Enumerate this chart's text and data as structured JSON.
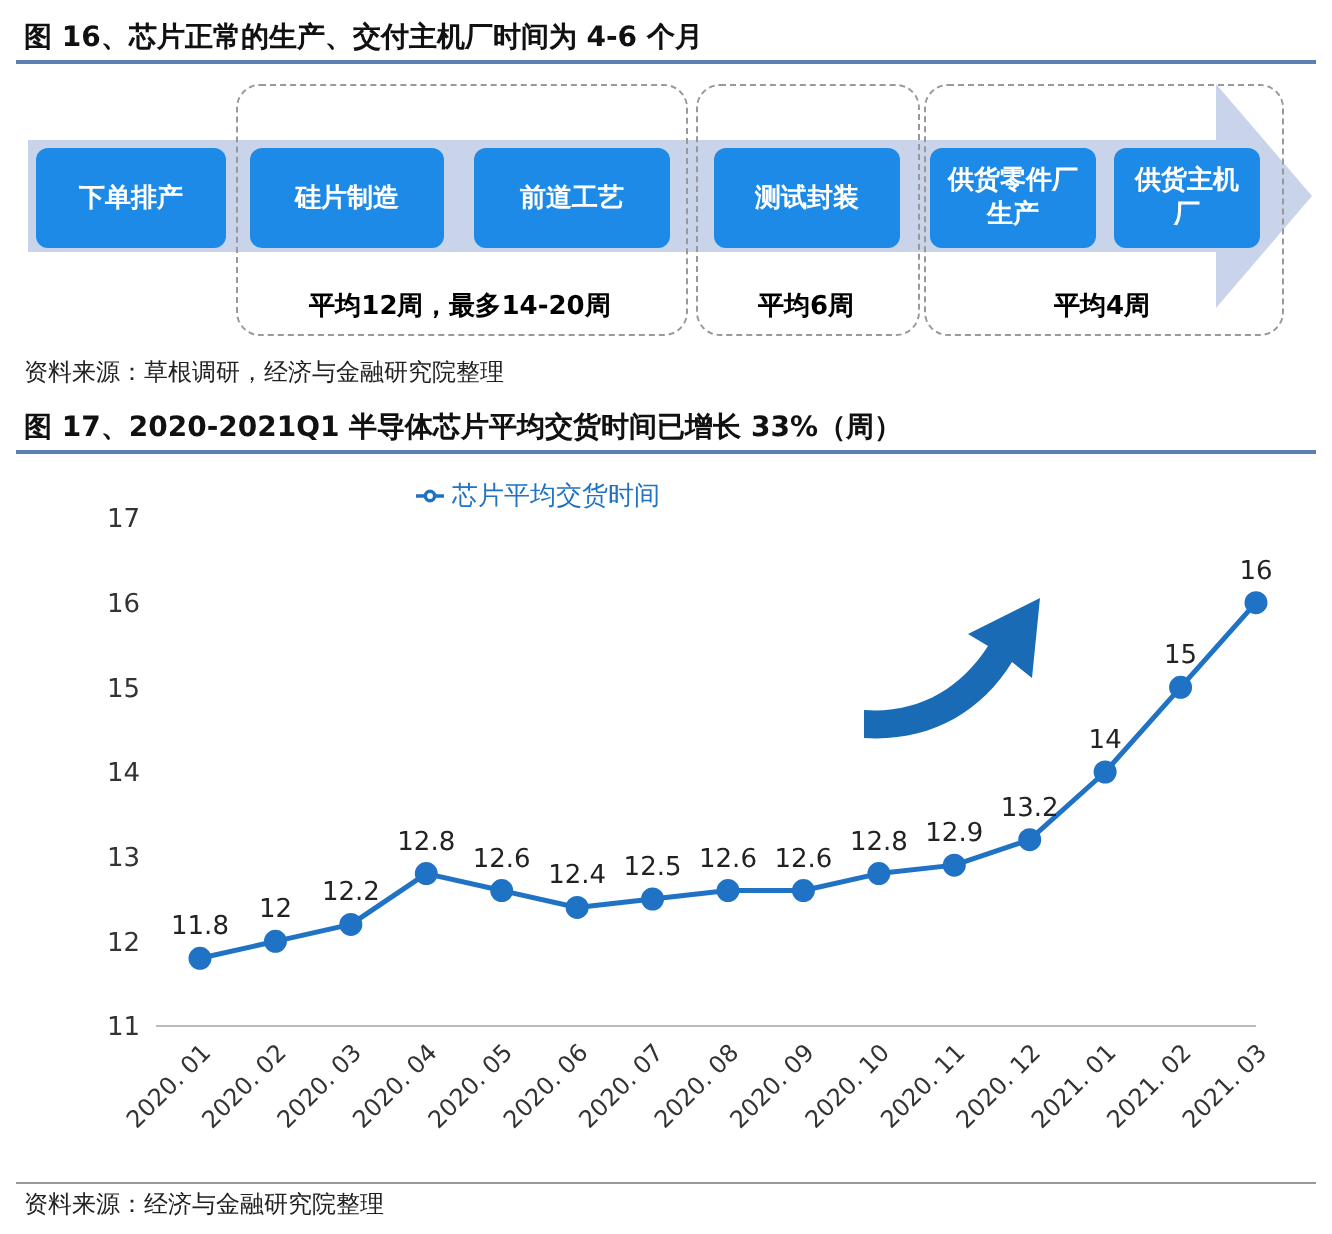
{
  "chart_data": [
    {
      "type": "other",
      "title": "图 16、芯片正常的生产、交付主机厂时间为 4-6 个月",
      "annotations": [
        "下单排产",
        "硅片制造",
        "前道工艺",
        "测试封装",
        "供货零件厂生产",
        "供货主机厂",
        "平均12周，最多14-20周",
        "平均6周",
        "平均4周",
        "资料来源：草根调研，经济与金融研究院整理"
      ]
    },
    {
      "type": "line",
      "title": "图 17、2020-2021Q1 半导体芯片平均交货时间已增长 33%（周）",
      "categories": [
        "2020. 01",
        "2020. 02",
        "2020. 03",
        "2020. 04",
        "2020. 05",
        "2020. 06",
        "2020. 07",
        "2020. 08",
        "2020. 09",
        "2020. 10",
        "2020. 11",
        "2020. 12",
        "2021. 01",
        "2021. 02",
        "2021. 03"
      ],
      "series": [
        {
          "name": "芯片平均交货时间",
          "color": "#1f72c4",
          "values": [
            11.8,
            12,
            12.2,
            12.8,
            12.6,
            12.4,
            12.5,
            12.6,
            12.6,
            12.8,
            12.9,
            13.2,
            14,
            15,
            16
          ]
        }
      ],
      "ylim": [
        11,
        17
      ],
      "yticks": [
        11,
        12,
        13,
        14,
        15,
        16,
        17
      ],
      "legend": "top left",
      "marker": "circle",
      "data_labels": true,
      "annotations": [
        "资料来源：经济与金融研究院整理"
      ]
    }
  ]
}
